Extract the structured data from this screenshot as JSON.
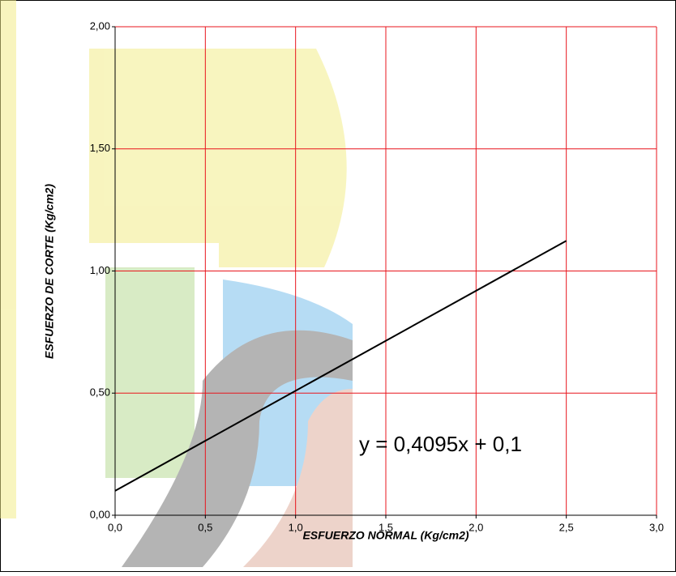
{
  "chart_data": {
    "type": "line",
    "xlabel": "ESFUERZO NORMAL (Kg/cm2)",
    "ylabel": "ESFUERZO DE CORTE (Kg/cm2)",
    "annotation": "y = 0,4095x + 0,1",
    "x": [
      0,
      2.5
    ],
    "series": [
      {
        "color": "#000000",
        "values": [
          0.1,
          1.12375
        ]
      }
    ],
    "xlim": [
      0,
      3
    ],
    "ylim": [
      0,
      2
    ],
    "xticks": [
      {
        "value": 0,
        "label": "0,0"
      },
      {
        "value": 0.5,
        "label": "0,5"
      },
      {
        "value": 1,
        "label": "1,0"
      },
      {
        "value": 1.5,
        "label": "1,5"
      },
      {
        "value": 2,
        "label": "2,0"
      },
      {
        "value": 2.5,
        "label": "2,5"
      },
      {
        "value": 3,
        "label": "3,0"
      }
    ],
    "yticks": [
      {
        "value": 0,
        "label": "0,00"
      },
      {
        "value": 0.5,
        "label": "0,50"
      },
      {
        "value": 1,
        "label": "1,00"
      },
      {
        "value": 1.5,
        "label": "1,50"
      },
      {
        "value": 2,
        "label": "2,00"
      }
    ],
    "grid": true,
    "grid_color": "#e8141c"
  }
}
